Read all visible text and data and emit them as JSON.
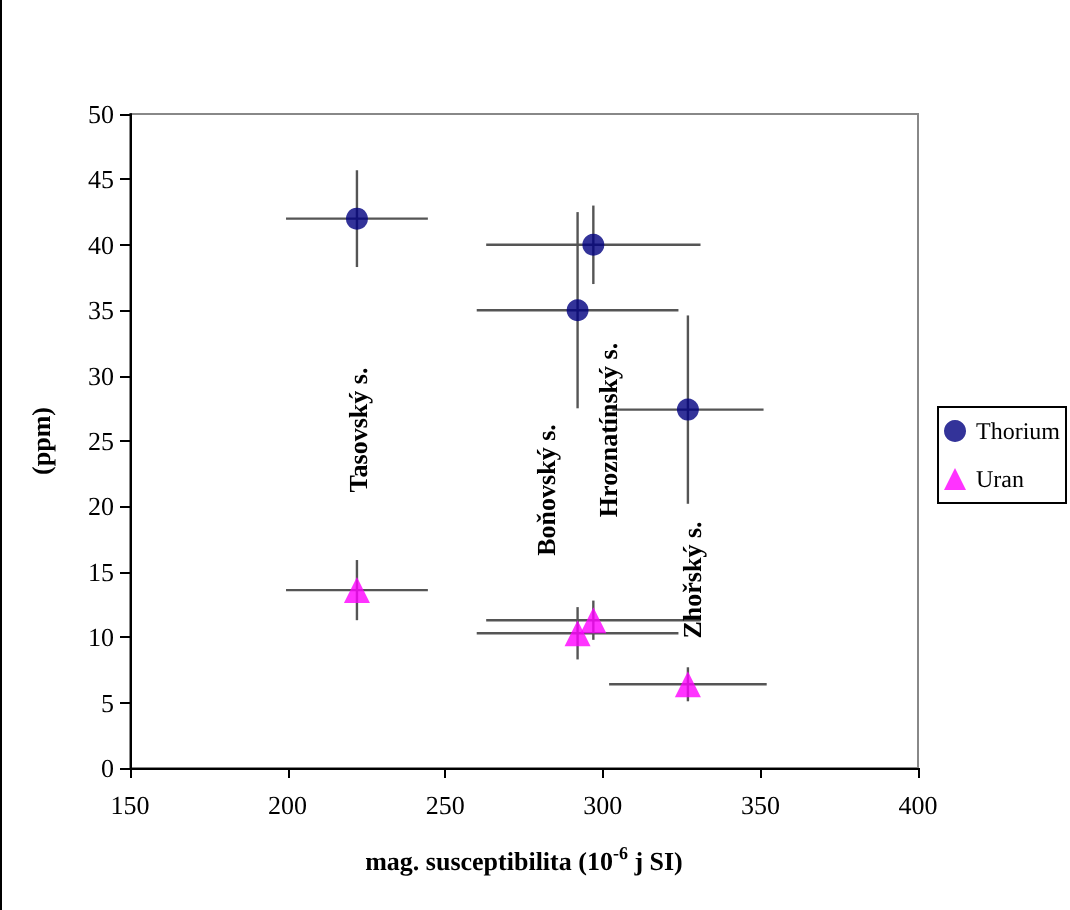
{
  "chart_data": {
    "type": "scatter",
    "xlabel": "mag. susceptibilita (10$^{-6}$ j SI)",
    "ylabel": "(ppm)",
    "xlim": [
      150,
      400
    ],
    "xticks": [
      150,
      200,
      250,
      300,
      350,
      400
    ],
    "ylim": [
      0,
      50
    ],
    "yticks": [
      0,
      5,
      10,
      15,
      20,
      25,
      30,
      35,
      40,
      45,
      50
    ],
    "grid": false,
    "legend": "right",
    "series": [
      {
        "name": "Thorium",
        "color": "#000080",
        "marker": "circle",
        "x": [
          222,
          297,
          292,
          327
        ],
        "values": [
          42,
          40,
          35,
          27.4
        ],
        "xerrors": [
          22.5,
          34,
          32,
          24
        ],
        "errors": [
          3.7,
          3,
          7.5,
          7.2
        ]
      },
      {
        "name": "Uran",
        "color": "#ff00ff",
        "marker": "triangle",
        "x": [
          222,
          292,
          297,
          327
        ],
        "values": [
          13.6,
          10.3,
          11.3,
          6.4
        ],
        "xerrors": [
          22.5,
          32,
          34,
          25
        ],
        "errors": [
          2.3,
          2,
          1.5,
          1.3
        ]
      }
    ],
    "annotations": [
      "Tasovský s.",
      "Boňovský s.",
      "Hroznatínský s.",
      "Zhořský s."
    ]
  }
}
